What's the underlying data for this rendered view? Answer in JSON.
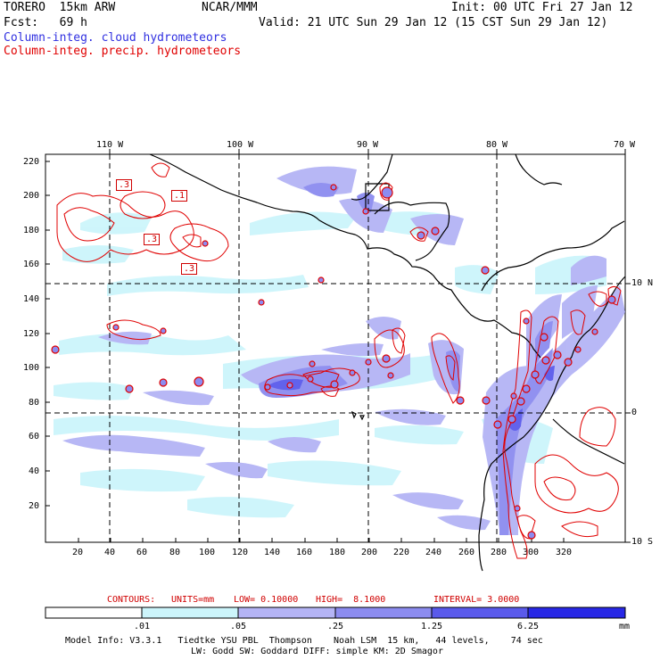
{
  "header": {
    "model": "TORERO  15km ARW",
    "org": "NCAR/MMM",
    "init": "Init: 00 UTC Fri 27 Jan 12",
    "fcst": "Fcst:   69 h",
    "valid": "Valid: 21 UTC Sun 29 Jan 12 (15 CST Sun 29 Jan 12)",
    "field1": "Column-integ. cloud hydrometeors",
    "field2": "Column-integ. precip. hydrometeors"
  },
  "axes": {
    "top_lon_labels": [
      "110 W",
      "100 W",
      "90 W",
      "80 W",
      "70 W"
    ],
    "right_lat_labels": [
      "10 N",
      "0",
      "10 S"
    ],
    "left_y_ticks": [
      "220",
      "200",
      "180",
      "160",
      "140",
      "120",
      "100",
      "80",
      "60",
      "40",
      "20"
    ],
    "bottom_x_ticks": [
      "20",
      "40",
      "60",
      "80",
      "100",
      "120",
      "140",
      "160",
      "180",
      "200",
      "220",
      "240",
      "260",
      "280",
      "300",
      "320"
    ]
  },
  "contour_labels": [
    ".3",
    ".1",
    ".3",
    ".3"
  ],
  "contours_info": {
    "label": "CONTOURS:",
    "units": "UNITS=mm",
    "low": "LOW= 0.10000",
    "high": "HIGH=  8.1000",
    "interval": "INTERVAL= 3.0000"
  },
  "colorbar": {
    "ticks": [
      ".01",
      ".05",
      ".25",
      "1.25",
      "6.25"
    ],
    "unit": "mm",
    "colors": [
      "#ffffff",
      "#ccf5fb",
      "#b4b4f5",
      "#8c8cf0",
      "#5a5aeb",
      "#2828e6"
    ]
  },
  "footer": {
    "line1": "Model Info: V3.3.1   Tiedtke YSU PBL  Thompson    Noah LSM  15 km,   44 levels,    74 sec",
    "line2": "LW: Godd SW: Goddard DIFF: simple KM: 2D Smagor"
  }
}
